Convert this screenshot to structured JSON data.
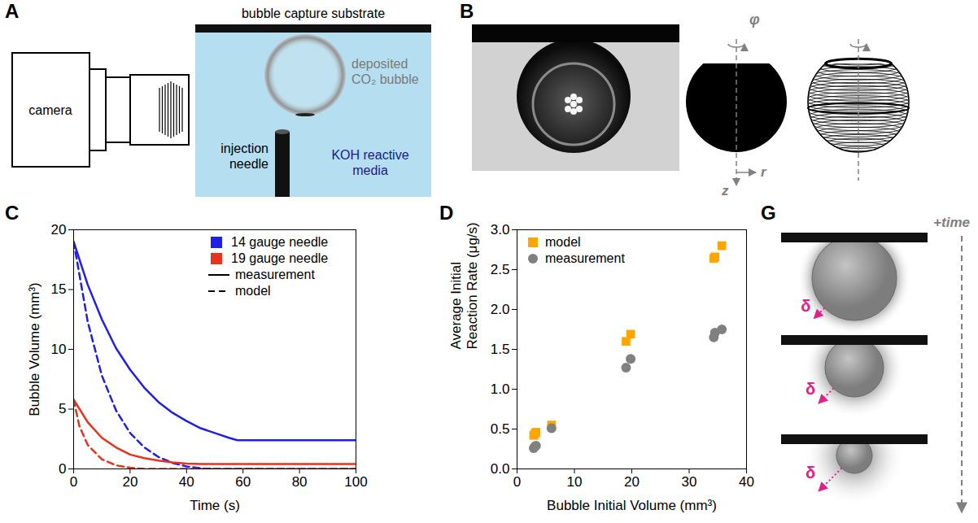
{
  "figure": {
    "panels": [
      {
        "letter": "A",
        "labels": {
          "camera": "camera",
          "substrate": "bubble capture substrate",
          "bubble": "deposited CO₂ bubble",
          "needle": "injection needle",
          "media": "KOH reactive media"
        }
      },
      {
        "letter": "B",
        "labels": {
          "azimuth": "φ",
          "radial": "r",
          "axial": "z"
        }
      },
      {
        "letter": "G",
        "labels": {
          "time": "+time",
          "thickness": "δ"
        }
      }
    ]
  },
  "chart_data": [
    {
      "panel": "C",
      "type": "line",
      "x_label": "Time (s)",
      "y_label": "Bubble Volume (mm³)",
      "xlim": [
        0,
        100
      ],
      "xticks": [
        0,
        20,
        40,
        60,
        80,
        100
      ],
      "ylim": [
        0,
        20
      ],
      "yticks": [
        0,
        5,
        10,
        15,
        20
      ],
      "legend": "top-right",
      "legend_groups": [
        {
          "name": "14 gauge needle",
          "color": "#1f1fe8"
        },
        {
          "name": "19 gauge needle",
          "color": "#e8321e"
        }
      ],
      "legend_styles": [
        {
          "name": "measurement",
          "line_style": "solid"
        },
        {
          "name": "model",
          "line_style": "dashed"
        }
      ],
      "series": [
        {
          "group": "14 gauge needle",
          "style": "measurement",
          "x": [
            0,
            5,
            10,
            15,
            20,
            25,
            30,
            35,
            40,
            45,
            50,
            55,
            58,
            100
          ],
          "values": [
            19,
            15.4,
            12.5,
            10.1,
            8.3,
            6.8,
            5.6,
            4.7,
            4.0,
            3.4,
            3.0,
            2.6,
            2.4,
            2.4
          ]
        },
        {
          "group": "14 gauge needle",
          "style": "model",
          "x": [
            0,
            5,
            10,
            15,
            20,
            25,
            30,
            35,
            40,
            45,
            50,
            100
          ],
          "values": [
            19,
            12.3,
            7.8,
            4.9,
            3.0,
            1.8,
            1.0,
            0.5,
            0.2,
            0.05,
            0,
            0
          ]
        },
        {
          "group": "19 gauge needle",
          "style": "measurement",
          "x": [
            0,
            5,
            10,
            15,
            20,
            25,
            30,
            35,
            40,
            45,
            100
          ],
          "values": [
            5.8,
            3.9,
            2.6,
            1.8,
            1.2,
            0.9,
            0.7,
            0.55,
            0.45,
            0.4,
            0.4
          ]
        },
        {
          "group": "19 gauge needle",
          "style": "model",
          "x": [
            0,
            2,
            5,
            10,
            15,
            20,
            25,
            100
          ],
          "values": [
            5.8,
            3.6,
            2.0,
            0.8,
            0.3,
            0.1,
            0,
            0
          ]
        }
      ]
    },
    {
      "panel": "D",
      "type": "scatter",
      "x_label": "Bubble Initial Volume (mm³)",
      "y_label": "Average Initial Reaction Rate (μg/s)",
      "xlim": [
        0,
        40
      ],
      "xticks": [
        0,
        10,
        20,
        30,
        40
      ],
      "ylim": [
        0,
        3
      ],
      "yticks": [
        {
          "value": 0,
          "label": "0.0"
        },
        {
          "value": 0.5,
          "label": "0.5"
        },
        {
          "value": 1,
          "label": "1.0"
        },
        {
          "value": 1.5,
          "label": "1.5"
        },
        {
          "value": 2,
          "label": "2.0"
        },
        {
          "value": 2.5,
          "label": "2.5"
        },
        {
          "value": 3,
          "label": "3.0"
        }
      ],
      "legend": "top-left",
      "series": [
        {
          "name": "model",
          "color": "#ffa500",
          "marker": "square",
          "x": [
            2.9,
            3.1,
            3.3,
            6.0,
            19.0,
            19.8,
            34.3,
            34.5,
            35.7
          ],
          "values": [
            0.42,
            0.44,
            0.46,
            0.55,
            1.6,
            1.69,
            2.64,
            2.66,
            2.8
          ]
        },
        {
          "name": "measurement",
          "color": "#808080",
          "marker": "circle",
          "x": [
            2.9,
            3.1,
            3.3,
            6.0,
            19.0,
            19.8,
            34.3,
            34.5,
            35.7
          ],
          "values": [
            0.26,
            0.28,
            0.29,
            0.51,
            1.27,
            1.38,
            1.65,
            1.71,
            1.75
          ]
        }
      ]
    }
  ]
}
